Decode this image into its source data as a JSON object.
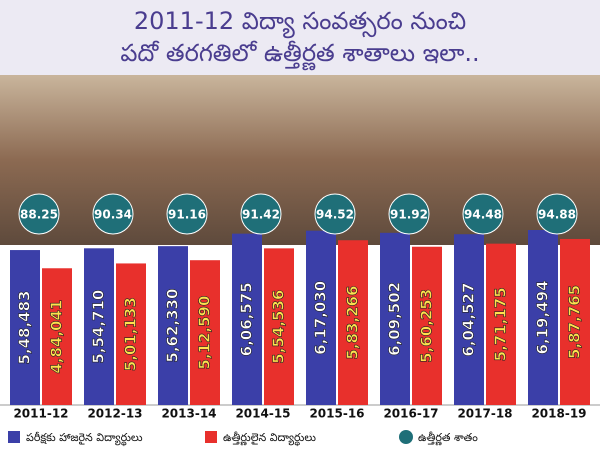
{
  "chart_data": {
    "type": "bar",
    "title": "2011-12 విద్యా సంవత్సరం నుంచి",
    "subtitle": "పదో తరగతిలో ఉత్తీర్ణత శాతాలు ఇలా..",
    "categories": [
      "2011-12",
      "2012-13",
      "2013-14",
      "2014-15",
      "2015-16",
      "2016-17",
      "2017-18",
      "2018-19"
    ],
    "series": [
      {
        "name": "పరీక్షకు హాజరైన విద్యార్థులు",
        "color": "#3b3fa8",
        "values": [
          548483,
          554710,
          562330,
          606575,
          617030,
          609502,
          604527,
          619494
        ],
        "value_labels": [
          "5,48,483",
          "5,54,710",
          "5,62,330",
          "6,06,575",
          "6,17,030",
          "6,09,502",
          "6,04,527",
          "6,19,494"
        ]
      },
      {
        "name": "ఉత్తీర్ణులైన విద్యార్థులు",
        "color": "#e8302c",
        "values": [
          484041,
          501133,
          512590,
          554536,
          583266,
          560253,
          571175,
          587765
        ],
        "value_labels": [
          "4,84,041",
          "5,01,133",
          "5,12,590",
          "5,54,536",
          "5,83,266",
          "5,60,253",
          "5,71,175",
          "5,87,765"
        ]
      },
      {
        "name": "ఉత్తీర్ణత శాతం",
        "color": "#1f6f78",
        "values": [
          88.25,
          90.34,
          91.16,
          91.42,
          94.52,
          91.92,
          94.48,
          94.88
        ]
      }
    ]
  }
}
